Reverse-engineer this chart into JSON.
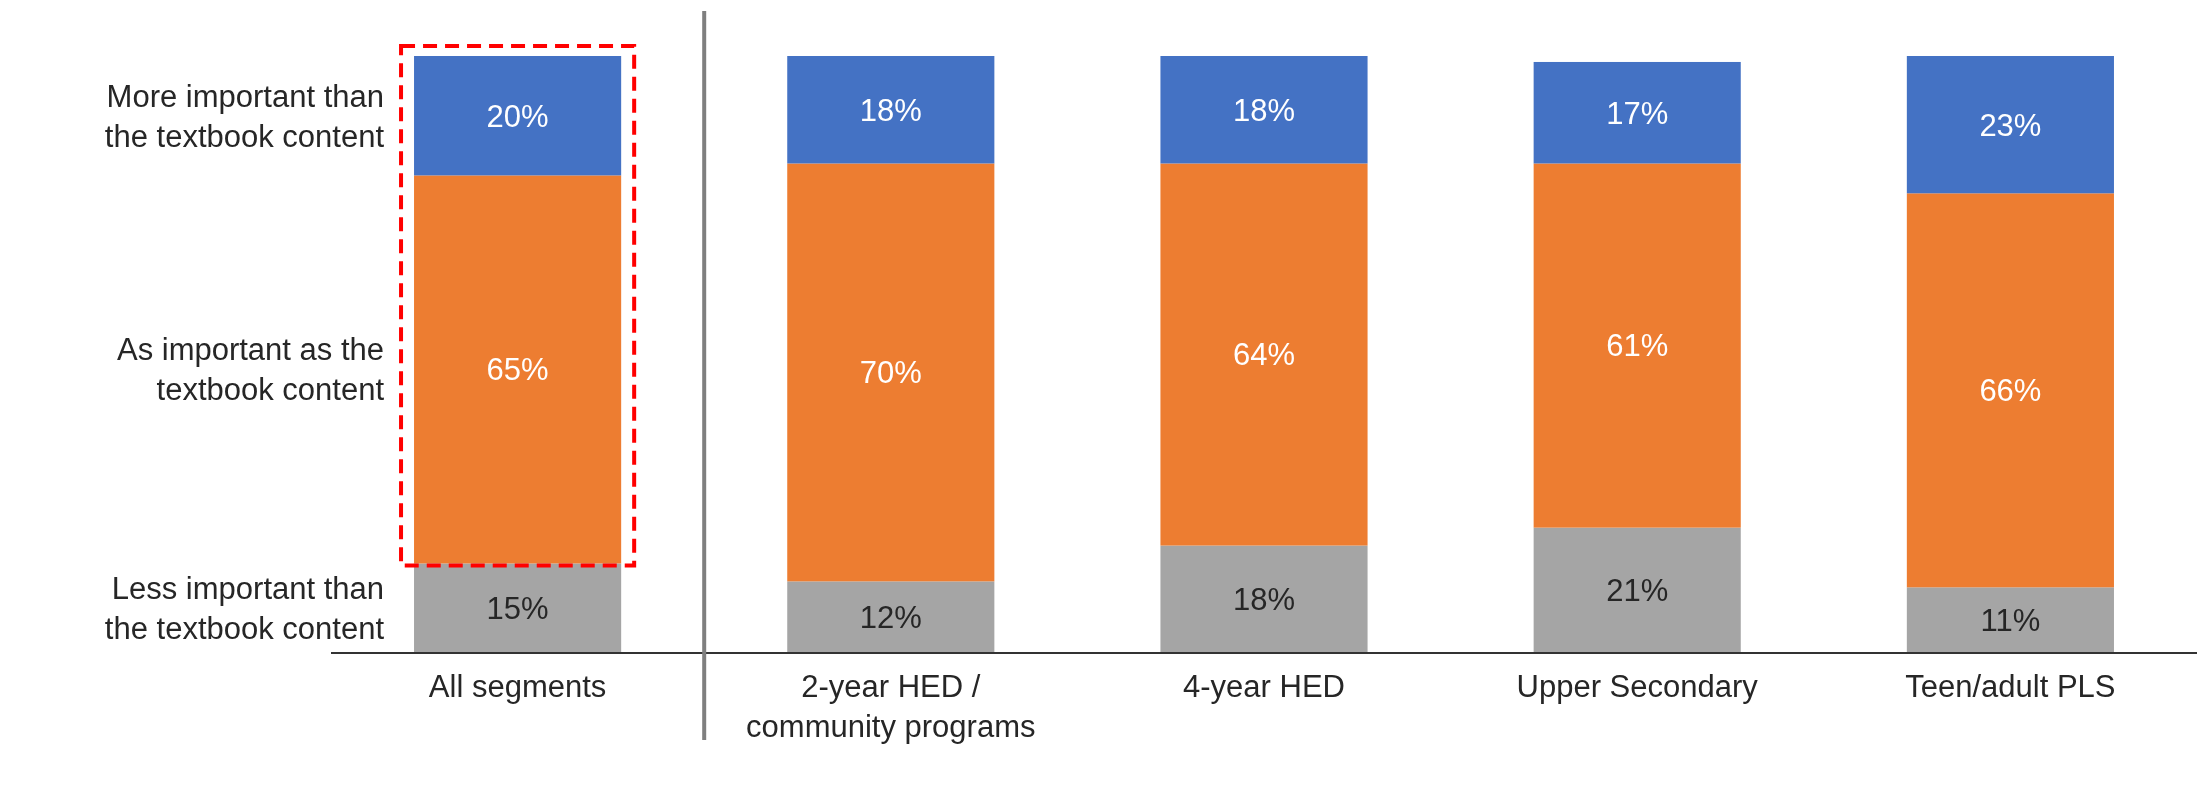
{
  "chart_data": {
    "type": "bar",
    "stacked": true,
    "categories": [
      "All segments",
      "2-year HED / community programs",
      "4-year HED",
      "Upper Secondary",
      "Teen/adult PLS"
    ],
    "series": [
      {
        "name": "Less important than the textbook content",
        "color": "#a5a5a5",
        "values": [
          15,
          12,
          18,
          21,
          11
        ],
        "value_labels": [
          "15%",
          "12%",
          "18%",
          "21%",
          "11%"
        ]
      },
      {
        "name": "As important as the textbook content",
        "color": "#ed7d31",
        "values": [
          65,
          70,
          64,
          61,
          66
        ],
        "value_labels": [
          "65%",
          "70%",
          "64%",
          "61%",
          "66%"
        ]
      },
      {
        "name": "More important than the textbook content",
        "color": "#4472c4",
        "values": [
          20,
          18,
          18,
          17,
          23
        ],
        "value_labels": [
          "20%",
          "18%",
          "18%",
          "17%",
          "23%"
        ]
      }
    ],
    "tick_labels": "x"
  }
}
